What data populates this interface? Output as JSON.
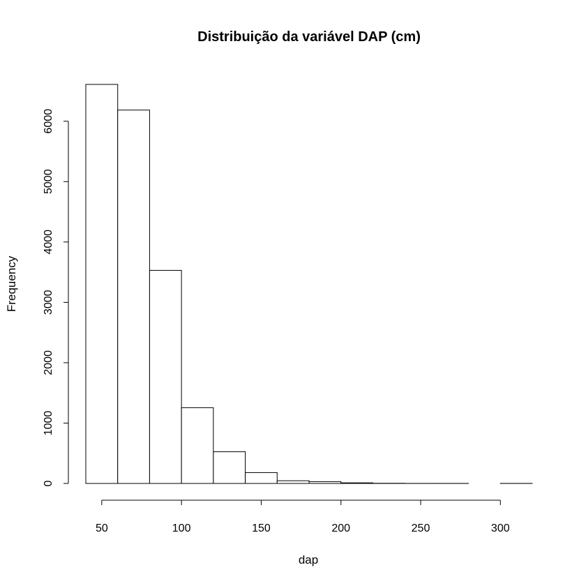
{
  "chart_data": {
    "type": "bar",
    "title": "Distribuição da variável DAP (cm)",
    "xlabel": "dap",
    "ylabel": "Frequency",
    "bins": [
      {
        "from": 40,
        "to": 60,
        "value": 6610
      },
      {
        "from": 60,
        "to": 80,
        "value": 6185
      },
      {
        "from": 80,
        "to": 100,
        "value": 3530
      },
      {
        "from": 100,
        "to": 120,
        "value": 1255
      },
      {
        "from": 120,
        "to": 140,
        "value": 525
      },
      {
        "from": 140,
        "to": 160,
        "value": 180
      },
      {
        "from": 160,
        "to": 180,
        "value": 45
      },
      {
        "from": 180,
        "to": 200,
        "value": 30
      },
      {
        "from": 200,
        "to": 220,
        "value": 10
      },
      {
        "from": 220,
        "to": 240,
        "value": 3
      },
      {
        "from": 240,
        "to": 260,
        "value": 1
      },
      {
        "from": 260,
        "to": 280,
        "value": 1
      },
      {
        "from": 280,
        "to": 300,
        "value": 0
      },
      {
        "from": 300,
        "to": 320,
        "value": 1
      }
    ],
    "xlim": [
      40,
      320
    ],
    "ylim": [
      0,
      6610
    ],
    "x_ticks": [
      50,
      100,
      150,
      200,
      250,
      300
    ],
    "x_tick_labels": [
      "50",
      "100",
      "150",
      "200",
      "250",
      "300"
    ],
    "y_ticks": [
      0,
      1000,
      2000,
      3000,
      4000,
      5000,
      6000
    ],
    "y_tick_labels": [
      "0",
      "1000",
      "2000",
      "3000",
      "4000",
      "5000",
      "6000"
    ],
    "grid": false,
    "legend": "none",
    "colors": {
      "bar_fill": "#ffffff",
      "bar_stroke": "#000000",
      "background": "#ffffff"
    }
  }
}
